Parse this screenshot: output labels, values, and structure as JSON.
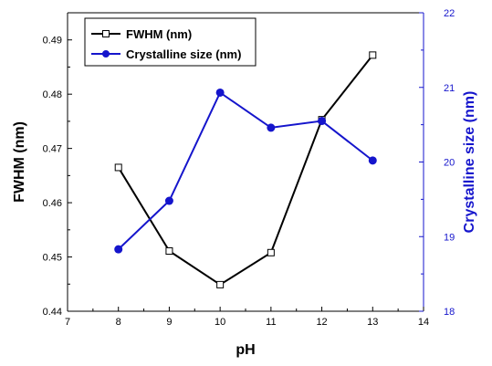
{
  "chart_data": {
    "type": "line",
    "title": "",
    "x": [
      8,
      9,
      10,
      11,
      12,
      13
    ],
    "xlabel": "pH",
    "xlim": [
      7,
      14
    ],
    "xticks": [
      7,
      8,
      9,
      10,
      11,
      12,
      13,
      14
    ],
    "ylabel_left": "FWHM (nm)",
    "ylim_left": [
      0.44,
      0.495
    ],
    "yticks_left": [
      0.44,
      0.45,
      0.46,
      0.47,
      0.48,
      0.49
    ],
    "ylabel_right": "Crystalline size (nm)",
    "ylim_right": [
      18,
      22
    ],
    "yticks_right": [
      18,
      19,
      20,
      21,
      22
    ],
    "legend_position": "top-left",
    "series": [
      {
        "name": "FWHM (nm)",
        "axis": "left",
        "color": "#000000",
        "marker": "open-square",
        "values": [
          0.4665,
          0.4511,
          0.4449,
          0.4508,
          0.4753,
          0.4872
        ]
      },
      {
        "name": "Crystalline size (nm)",
        "axis": "right",
        "color": "#1515cc",
        "marker": "filled-circle",
        "values": [
          18.83,
          19.48,
          20.93,
          20.46,
          20.55,
          20.02
        ]
      }
    ]
  }
}
